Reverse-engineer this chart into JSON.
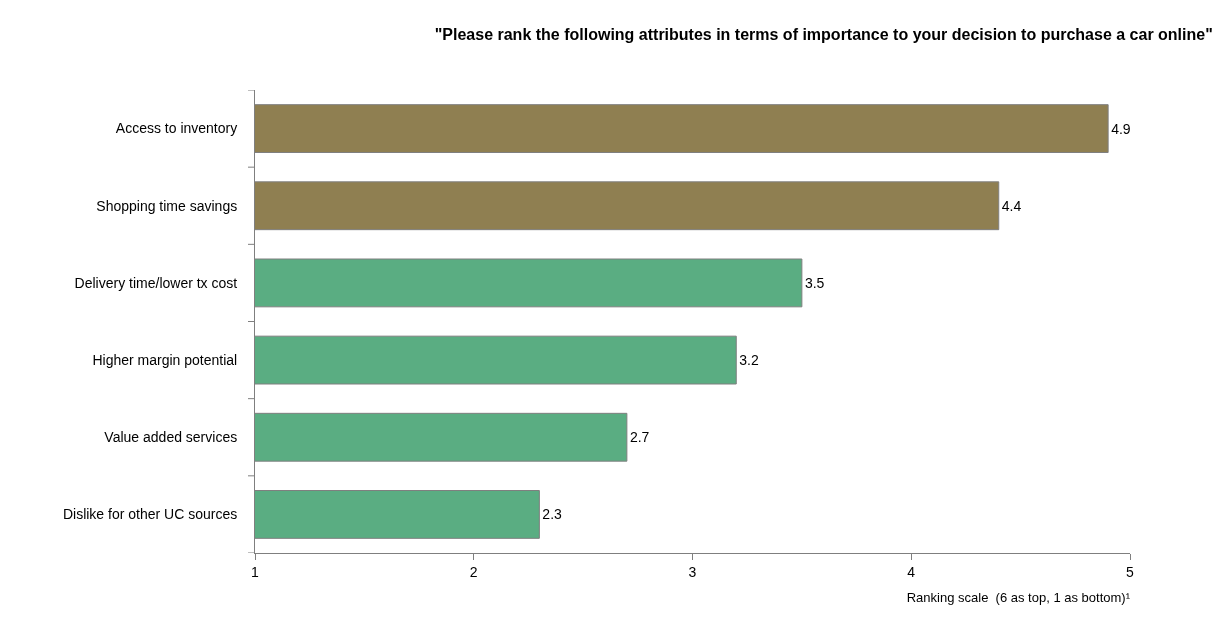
{
  "chart_data": {
    "type": "bar",
    "orientation": "horizontal",
    "title": "\"Please rank the following attributes in terms of importance to your decision to purchase a car online\"",
    "xlabel": "Ranking scale  (6 as top, 1 as bottom)¹",
    "categories": [
      "Access to inventory",
      "Shopping time savings",
      "Delivery time/lower tx cost",
      "Higher margin potential",
      "Value added services",
      "Dislike for other UC sources"
    ],
    "values": [
      4.9,
      4.4,
      3.5,
      3.2,
      2.7,
      2.3
    ],
    "colors": [
      "#8f7f51",
      "#8f7f51",
      "#5aad82",
      "#5aad82",
      "#5aad82",
      "#5aad82"
    ],
    "xlim": [
      1,
      5
    ],
    "xticks": [
      1,
      2,
      3,
      4,
      5
    ],
    "data_labels": true
  }
}
